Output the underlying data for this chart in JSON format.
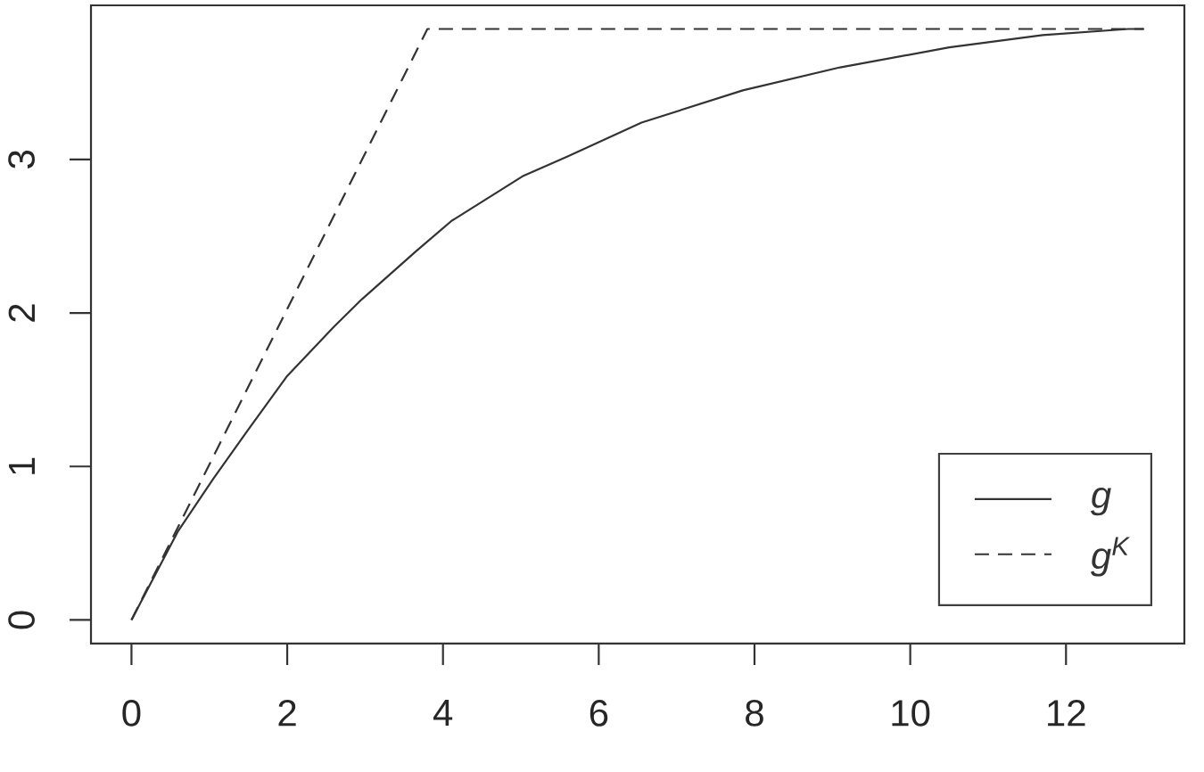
{
  "chart_data": {
    "type": "line",
    "series": [
      {
        "name": "g",
        "color": "#333333",
        "line_style": "solid",
        "x": [
          0,
          0.6,
          1.05,
          1.5,
          2,
          2.6,
          2.96,
          3.65,
          4.11,
          5.02,
          5.6,
          6.55,
          7.85,
          9.1,
          10.5,
          11.7,
          12.8,
          13
        ],
        "values": [
          0,
          0.58,
          0.92,
          1.24,
          1.59,
          1.91,
          2.09,
          2.4,
          2.6,
          2.89,
          3.02,
          3.24,
          3.45,
          3.6,
          3.73,
          3.81,
          3.85,
          3.85
        ]
      },
      {
        "name": "g$^{K}$",
        "color": "#333333",
        "line_style": "dashed",
        "x": [
          0,
          3.8,
          13
        ],
        "values": [
          0,
          3.85,
          3.85
        ]
      }
    ],
    "xlim": [
      -0.52,
      13.52
    ],
    "ylim": [
      -0.154,
      4.004
    ],
    "xticks": [
      0,
      2,
      4,
      6,
      8,
      10,
      12
    ],
    "yticks": [
      0,
      1,
      2,
      3
    ],
    "legend": "bottom right",
    "marker": "none"
  }
}
